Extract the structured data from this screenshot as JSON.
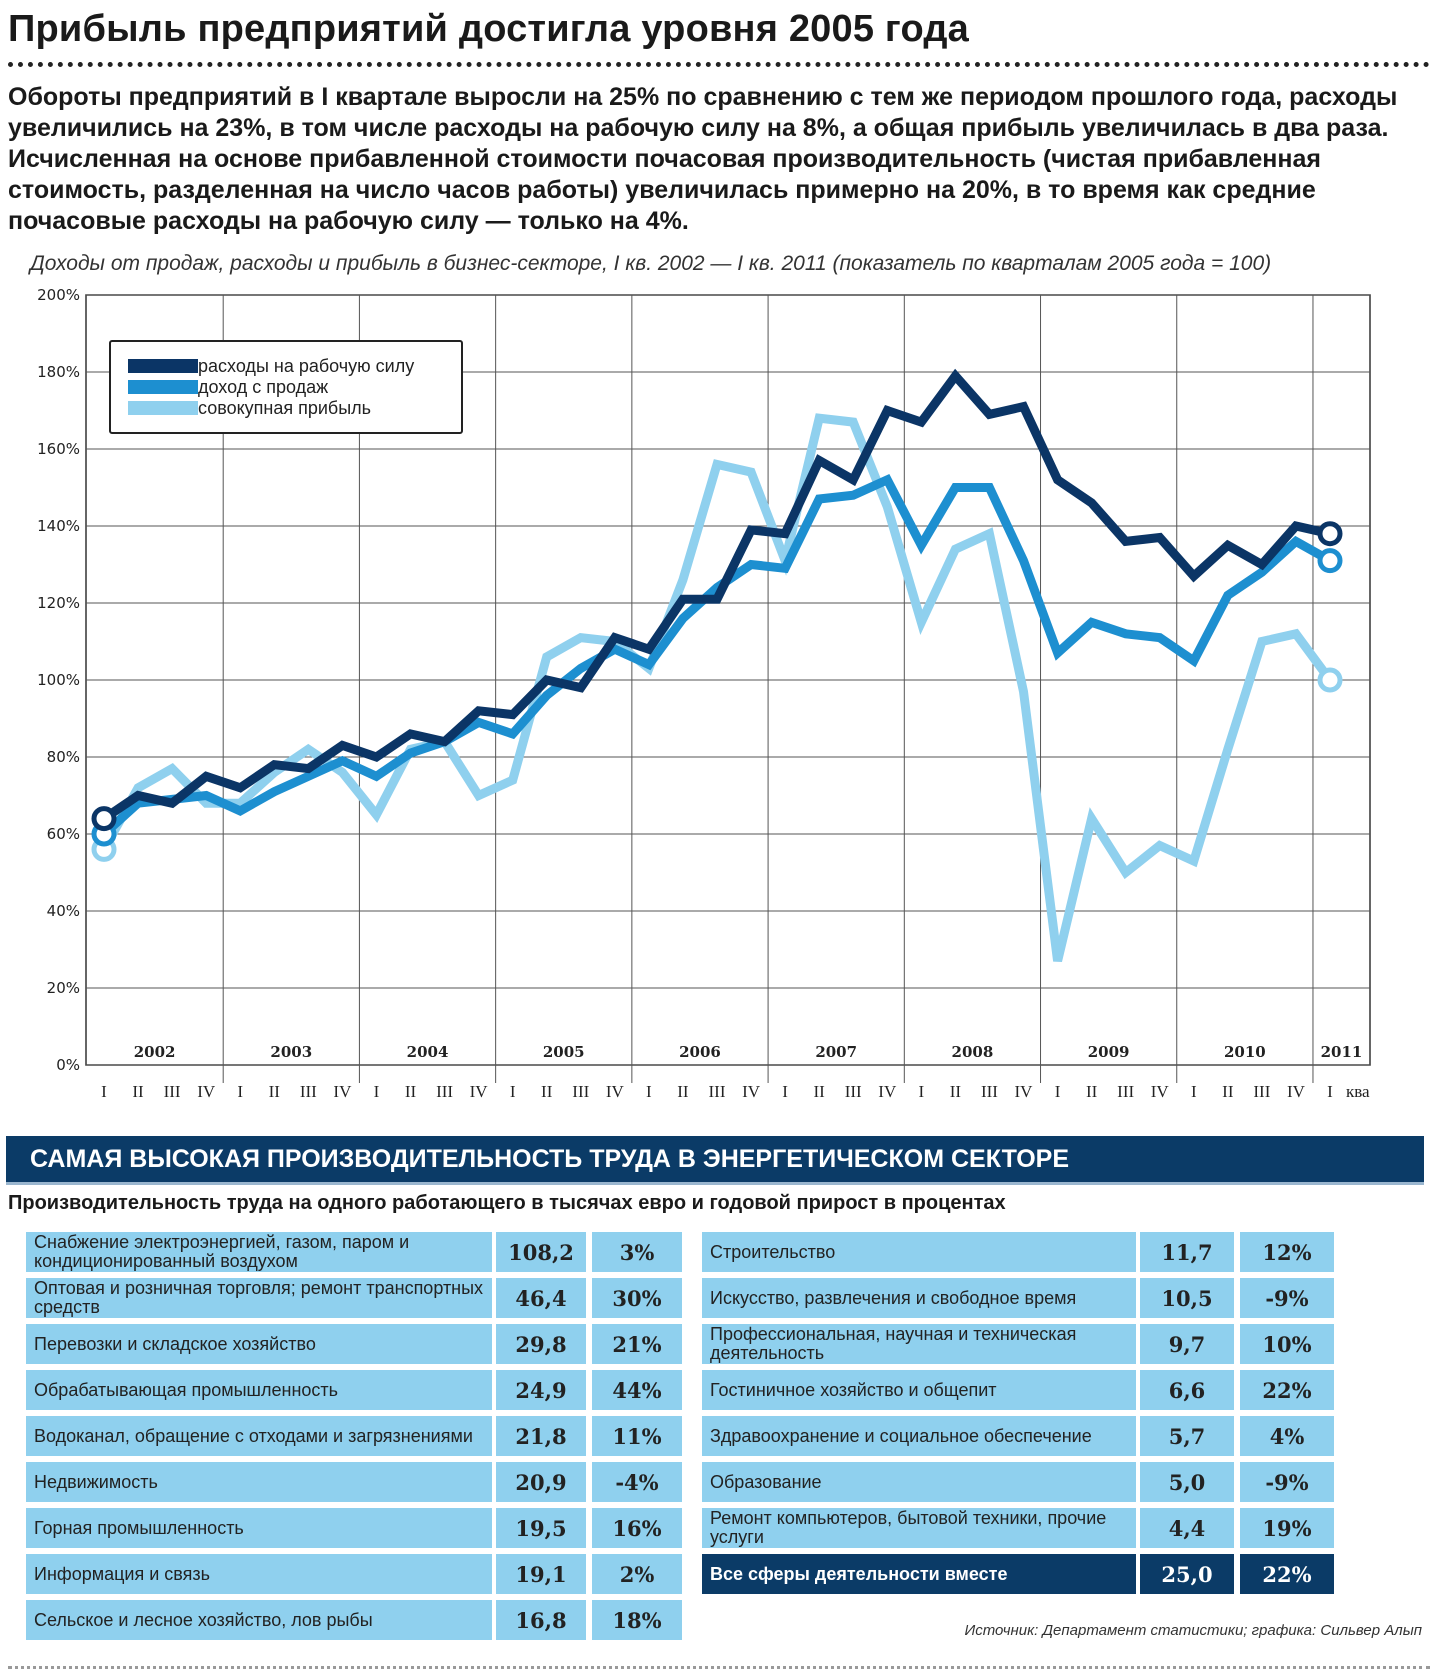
{
  "headline": "Прибыль предприятий достигла уровня 2005 года",
  "lead": "Обороты предприятий в I квартале выросли на 25% по сравнению с тем же периодом прошлого года, расходы увеличились на 23%, в том числе расходы на рабочую силу на 8%, а общая прибыль увеличилась в два раза. Исчисленная на основе прибавленной стоимости почасовая производительность (чистая прибавленная стоимость, разделенная на число часов работы) увеличилась примерно на 20%, в то время как средние почасовые расходы на рабочую силу — только на 4%.",
  "chart_subtitle": "Доходы от продаж, расходы и прибыль в бизнес-секторе, I кв. 2002 — I кв. 2011 (показатель по кварталам 2005 года = 100)",
  "chart_data": {
    "type": "line",
    "ylim": [
      0,
      200
    ],
    "yticks": [
      "0%",
      "20%",
      "40%",
      "60%",
      "80%",
      "100%",
      "120%",
      "140%",
      "160%",
      "180%",
      "200%"
    ],
    "quarter_labels": [
      "I",
      "II",
      "III",
      "IV",
      "I",
      "II",
      "III",
      "IV",
      "I",
      "II",
      "III",
      "IV",
      "I",
      "II",
      "III",
      "IV",
      "I",
      "II",
      "III",
      "IV",
      "I",
      "II",
      "III",
      "IV",
      "I",
      "II",
      "III",
      "IV",
      "I",
      "II",
      "III",
      "IV",
      "I",
      "II",
      "III",
      "IV",
      "I"
    ],
    "years": [
      "2002",
      "2003",
      "2004",
      "2005",
      "2006",
      "2007",
      "2008",
      "2009",
      "2010",
      "2011"
    ],
    "axis_suffix": "ква",
    "legend_position": "top-left",
    "grid": true,
    "series": [
      {
        "name": "расходы на рабочую силу",
        "color": "#0b3566",
        "values": [
          64,
          70,
          68,
          75,
          72,
          78,
          77,
          83,
          80,
          86,
          84,
          92,
          91,
          100,
          98,
          111,
          108,
          121,
          121,
          139,
          138,
          157,
          152,
          170,
          167,
          179,
          169,
          171,
          152,
          146,
          136,
          137,
          127,
          135,
          130,
          140,
          138
        ]
      },
      {
        "name": "доход с продаж",
        "color": "#1d8fd0",
        "values": [
          60,
          68,
          69,
          70,
          66,
          71,
          75,
          79,
          75,
          81,
          84,
          89,
          86,
          96,
          103,
          108,
          104,
          116,
          124,
          130,
          129,
          147,
          148,
          152,
          135,
          150,
          150,
          131,
          107,
          115,
          112,
          111,
          105,
          122,
          128,
          136,
          131
        ]
      },
      {
        "name": "совокупная прибыль",
        "color": "#8fd0ee",
        "values": [
          56,
          72,
          77,
          68,
          68,
          76,
          82,
          76,
          65,
          82,
          84,
          70,
          74,
          106,
          111,
          110,
          103,
          126,
          156,
          154,
          131,
          168,
          167,
          145,
          115,
          134,
          138,
          97,
          27,
          64,
          50,
          57,
          53,
          82,
          110,
          112,
          100
        ]
      }
    ]
  },
  "table": {
    "banner": "САМАЯ ВЫСОКАЯ ПРОИЗВОДИТЕЛЬНОСТЬ ТРУДА В ЭНЕРГЕТИЧЕСКОМ СЕКТОРЕ",
    "subtitle": "Производительность труда на одного работающего в тысячах евро и годовой прирост в процентах",
    "left": [
      {
        "name": "Снабжение электроэнергией, газом, паром и кондиционированный воздухом",
        "value": "108,2",
        "growth": "3%"
      },
      {
        "name": "Оптовая и розничная торговля; ремонт транспортных средств",
        "value": "46,4",
        "growth": "30%"
      },
      {
        "name": "Перевозки и складское хозяйство",
        "value": "29,8",
        "growth": "21%"
      },
      {
        "name": "Обрабатывающая промышленность",
        "value": "24,9",
        "growth": "44%"
      },
      {
        "name": "Водоканал, обращение с отходами и загрязнениями",
        "value": "21,8",
        "growth": "11%"
      },
      {
        "name": "Недвижимость",
        "value": "20,9",
        "growth": "-4%"
      },
      {
        "name": "Горная промышленность",
        "value": "19,5",
        "growth": "16%"
      },
      {
        "name": "Информация и связь",
        "value": "19,1",
        "growth": "2%"
      },
      {
        "name": "Сельское и лесное хозяйство, лов рыбы",
        "value": "16,8",
        "growth": "18%"
      }
    ],
    "right": [
      {
        "name": "Строительство",
        "value": "11,7",
        "growth": "12%"
      },
      {
        "name": "Искусство, развлечения и свободное время",
        "value": "10,5",
        "growth": "-9%"
      },
      {
        "name": "Профессиональная, научная и техническая деятельность",
        "value": "9,7",
        "growth": "10%"
      },
      {
        "name": "Гостиничное хозяйство и общепит",
        "value": "6,6",
        "growth": "22%"
      },
      {
        "name": "Здравоохранение и социальное обеспечение",
        "value": "5,7",
        "growth": "4%"
      },
      {
        "name": "Образование",
        "value": "5,0",
        "growth": "-9%"
      },
      {
        "name": "Ремонт компьютеров, бытовой техники, прочие услуги",
        "value": "4,4",
        "growth": "19%"
      },
      {
        "name": "Все сферы деятельности вместе",
        "value": "25,0",
        "growth": "22%",
        "total": true
      }
    ]
  },
  "source": "Источник: Департамент статистики; графика: Сильвер Алып"
}
